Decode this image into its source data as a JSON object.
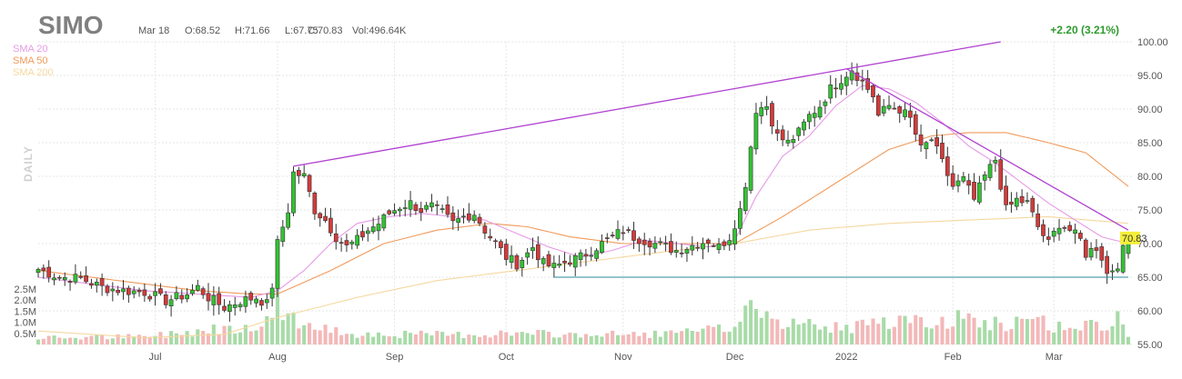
{
  "header": {
    "ticker": "SIMO",
    "date": "Mar 18",
    "open": "O:68.52",
    "high": "H:71.66",
    "low": "L:67.75",
    "close": "C:70.83",
    "volume": "Vol:496.64K",
    "change": "+2.20 (3.21%)"
  },
  "timeframe_label": "DAILY",
  "legend": [
    {
      "label": "SMA 20",
      "color": "#e69ae6"
    },
    {
      "label": "SMA 50",
      "color": "#f09a5a"
    },
    {
      "label": "SMA 200",
      "color": "#f5d8a0"
    }
  ],
  "colors": {
    "up": "#31c431",
    "down": "#d43a3a",
    "up_vol": "#a8dba8",
    "down_vol": "#f3b8b8",
    "trendline": "#b040d0",
    "support": "#2a8a9a",
    "grid": "#e6e6e6",
    "last_price_bg": "#f5ef3a"
  },
  "chart_data": {
    "type": "candlestick",
    "y_axis": {
      "ticks": [
        "100.00",
        "95.00",
        "90.00",
        "85.00",
        "80.00",
        "75.00",
        "70.00",
        "65.00",
        "60.00",
        "55.00"
      ],
      "range": [
        55,
        100
      ]
    },
    "volume_axis": {
      "ticks": [
        "2.5M",
        "2.0M",
        "1.5M",
        "1.0M",
        "0.5M"
      ]
    },
    "x_axis": {
      "ticks": [
        {
          "label": "Jul",
          "index": 22
        },
        {
          "label": "Aug",
          "index": 45
        },
        {
          "label": "Sep",
          "index": 67
        },
        {
          "label": "Oct",
          "index": 88
        },
        {
          "label": "Nov",
          "index": 110
        },
        {
          "label": "Dec",
          "index": 131
        },
        {
          "label": "2022",
          "index": 152
        },
        {
          "label": "Feb",
          "index": 172
        },
        {
          "label": "Mar",
          "index": 191
        }
      ]
    },
    "last_price": "70.83",
    "trendlines": [
      {
        "name": "upper-rising",
        "from": {
          "index": 48,
          "value": 81.5
        },
        "to": {
          "index": 181,
          "value": 100.0
        }
      },
      {
        "name": "falling",
        "from": {
          "index": 152,
          "value": 96.0
        },
        "to": {
          "index": 205,
          "value": 72.0
        }
      },
      {
        "name": "support",
        "from": {
          "index": 97,
          "value": 65.0
        },
        "to": {
          "index": 205,
          "value": 65.0
        }
      }
    ],
    "anchors": [
      [
        0,
        66.2
      ],
      [
        4,
        65.0
      ],
      [
        8,
        64.8
      ],
      [
        12,
        63.5
      ],
      [
        16,
        63.0
      ],
      [
        20,
        62.8
      ],
      [
        24,
        61.5
      ],
      [
        28,
        62.5
      ],
      [
        30,
        63.5
      ],
      [
        32,
        62.0
      ],
      [
        35,
        60.5
      ],
      [
        38,
        61.5
      ],
      [
        41,
        62.0
      ],
      [
        43,
        61.0
      ],
      [
        44,
        63.8
      ],
      [
        45,
        70.0
      ],
      [
        47,
        75.0
      ],
      [
        48,
        80.5
      ],
      [
        50,
        80.0
      ],
      [
        52,
        75.0
      ],
      [
        54,
        73.5
      ],
      [
        56,
        71.0
      ],
      [
        58,
        69.5
      ],
      [
        60,
        70.5
      ],
      [
        62,
        72.0
      ],
      [
        64,
        73.0
      ],
      [
        66,
        74.5
      ],
      [
        68,
        75.5
      ],
      [
        70,
        76.0
      ],
      [
        72,
        75.0
      ],
      [
        74,
        75.5
      ],
      [
        76,
        74.5
      ],
      [
        78,
        73.0
      ],
      [
        80,
        74.0
      ],
      [
        82,
        74.5
      ],
      [
        84,
        72.0
      ],
      [
        86,
        70.0
      ],
      [
        88,
        68.0
      ],
      [
        90,
        67.0
      ],
      [
        92,
        68.5
      ],
      [
        93,
        69.5
      ],
      [
        95,
        67.0
      ],
      [
        97,
        66.5
      ],
      [
        100,
        67.5
      ],
      [
        102,
        68.0
      ],
      [
        104,
        69.0
      ],
      [
        106,
        70.0
      ],
      [
        108,
        71.0
      ],
      [
        110,
        72.0
      ],
      [
        112,
        71.0
      ],
      [
        114,
        70.5
      ],
      [
        116,
        70.0
      ],
      [
        118,
        69.5
      ],
      [
        120,
        69.0
      ],
      [
        122,
        69.5
      ],
      [
        124,
        70.0
      ],
      [
        126,
        70.5
      ],
      [
        128,
        69.5
      ],
      [
        130,
        71.0
      ],
      [
        131,
        73.0
      ],
      [
        132,
        75.0
      ],
      [
        133,
        79.0
      ],
      [
        134,
        84.5
      ],
      [
        135,
        90.0
      ],
      [
        137,
        90.5
      ],
      [
        139,
        86.0
      ],
      [
        141,
        85.0
      ],
      [
        143,
        86.5
      ],
      [
        145,
        89.0
      ],
      [
        147,
        90.5
      ],
      [
        149,
        93.0
      ],
      [
        151,
        94.5
      ],
      [
        153,
        96.0
      ],
      [
        155,
        94.0
      ],
      [
        157,
        92.0
      ],
      [
        158,
        89.0
      ],
      [
        160,
        90.5
      ],
      [
        162,
        90.0
      ],
      [
        164,
        88.5
      ],
      [
        166,
        84.0
      ],
      [
        168,
        85.5
      ],
      [
        170,
        82.0
      ],
      [
        172,
        78.5
      ],
      [
        174,
        79.5
      ],
      [
        176,
        76.5
      ],
      [
        178,
        80.0
      ],
      [
        180,
        82.5
      ],
      [
        182,
        75.0
      ],
      [
        184,
        76.5
      ],
      [
        186,
        76.0
      ],
      [
        188,
        72.5
      ],
      [
        190,
        70.0
      ],
      [
        192,
        73.0
      ],
      [
        194,
        72.0
      ],
      [
        196,
        70.5
      ],
      [
        197,
        68.5
      ],
      [
        199,
        69.5
      ],
      [
        200,
        68.0
      ],
      [
        201,
        65.5
      ],
      [
        203,
        67.0
      ],
      [
        204,
        69.0
      ],
      [
        205,
        70.83
      ]
    ],
    "volume_anchors": [
      [
        0,
        0.3
      ],
      [
        20,
        0.35
      ],
      [
        44,
        1.0
      ],
      [
        45,
        2.9
      ],
      [
        47,
        1.3
      ],
      [
        52,
        0.7
      ],
      [
        60,
        0.5
      ],
      [
        70,
        0.45
      ],
      [
        80,
        0.45
      ],
      [
        88,
        0.5
      ],
      [
        100,
        0.45
      ],
      [
        110,
        0.45
      ],
      [
        120,
        0.5
      ],
      [
        130,
        0.7
      ],
      [
        134,
        1.9
      ],
      [
        135,
        1.2
      ],
      [
        140,
        0.9
      ],
      [
        150,
        0.8
      ],
      [
        160,
        0.9
      ],
      [
        170,
        1.0
      ],
      [
        175,
        1.3
      ],
      [
        180,
        1.0
      ],
      [
        190,
        0.9
      ],
      [
        200,
        0.8
      ],
      [
        205,
        0.5
      ]
    ],
    "volume_spikes": [
      [
        44,
        1.2
      ],
      [
        45,
        2.9
      ],
      [
        46,
        1.1
      ],
      [
        47,
        1.4
      ],
      [
        134,
        2.0
      ],
      [
        135,
        1.6
      ],
      [
        136,
        1.2
      ],
      [
        162,
        1.3
      ],
      [
        175,
        1.4
      ],
      [
        178,
        1.1
      ],
      [
        189,
        1.3
      ],
      [
        203,
        1.5
      ],
      [
        204,
        0.9
      ]
    ],
    "sma_anchors": {
      "sma20": [
        [
          0,
          65.0
        ],
        [
          10,
          64.0
        ],
        [
          20,
          63.0
        ],
        [
          30,
          62.5
        ],
        [
          40,
          62.0
        ],
        [
          45,
          63.0
        ],
        [
          50,
          66.0
        ],
        [
          55,
          70.0
        ],
        [
          60,
          73.0
        ],
        [
          66,
          74.0
        ],
        [
          72,
          74.5
        ],
        [
          78,
          74.0
        ],
        [
          84,
          73.5
        ],
        [
          90,
          71.5
        ],
        [
          96,
          69.5
        ],
        [
          102,
          68.0
        ],
        [
          108,
          69.0
        ],
        [
          114,
          70.5
        ],
        [
          120,
          70.0
        ],
        [
          126,
          69.5
        ],
        [
          131,
          70.5
        ],
        [
          135,
          77.0
        ],
        [
          140,
          83.0
        ],
        [
          145,
          86.0
        ],
        [
          150,
          90.5
        ],
        [
          155,
          93.5
        ],
        [
          160,
          93.0
        ],
        [
          165,
          91.0
        ],
        [
          170,
          88.0
        ],
        [
          175,
          84.5
        ],
        [
          180,
          82.0
        ],
        [
          185,
          79.0
        ],
        [
          190,
          76.0
        ],
        [
          195,
          73.5
        ],
        [
          200,
          71.0
        ],
        [
          205,
          70.0
        ]
      ],
      "sma50": [
        [
          0,
          66.0
        ],
        [
          10,
          65.0
        ],
        [
          20,
          64.0
        ],
        [
          30,
          63.0
        ],
        [
          40,
          62.5
        ],
        [
          45,
          62.5
        ],
        [
          55,
          66.0
        ],
        [
          65,
          70.0
        ],
        [
          75,
          72.0
        ],
        [
          85,
          73.0
        ],
        [
          92,
          72.5
        ],
        [
          100,
          71.0
        ],
        [
          110,
          70.0
        ],
        [
          120,
          70.0
        ],
        [
          131,
          70.0
        ],
        [
          140,
          74.0
        ],
        [
          150,
          79.0
        ],
        [
          160,
          84.0
        ],
        [
          168,
          86.0
        ],
        [
          175,
          86.5
        ],
        [
          182,
          86.5
        ],
        [
          190,
          85.0
        ],
        [
          197,
          83.5
        ],
        [
          205,
          78.5
        ]
      ],
      "sma200": [
        [
          0,
          57.0
        ],
        [
          20,
          56.0
        ],
        [
          35,
          56.5
        ],
        [
          45,
          59.0
        ],
        [
          60,
          62.0
        ],
        [
          75,
          64.5
        ],
        [
          90,
          66.0
        ],
        [
          105,
          67.5
        ],
        [
          120,
          69.0
        ],
        [
          131,
          70.0
        ],
        [
          145,
          72.0
        ],
        [
          160,
          73.0
        ],
        [
          175,
          73.5
        ],
        [
          190,
          74.0
        ],
        [
          205,
          73.0
        ]
      ]
    }
  }
}
